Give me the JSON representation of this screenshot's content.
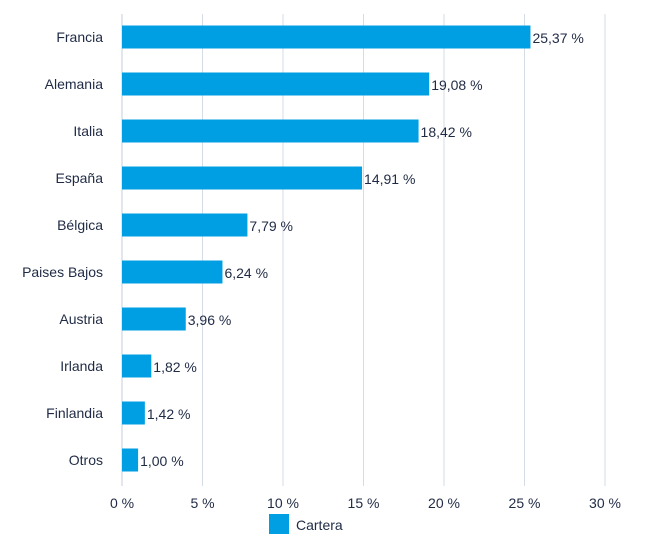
{
  "chart_data": {
    "type": "bar",
    "orientation": "horizontal",
    "categories": [
      "Francia",
      "Alemania",
      "Italia",
      "España",
      "Bélgica",
      "Paises Bajos",
      "Austria",
      "Irlanda",
      "Finlandia",
      "Otros"
    ],
    "series": [
      {
        "name": "Cartera",
        "values": [
          25.37,
          19.08,
          18.42,
          14.91,
          7.79,
          6.24,
          3.96,
          1.82,
          1.42,
          1.0
        ],
        "labels": [
          "25,37 %",
          "19,08 %",
          "18,42 %",
          "14,91 %",
          "7,79 %",
          "6,24 %",
          "3,96 %",
          "1,82 %",
          "1,42 %",
          "1,00 %"
        ]
      }
    ],
    "xlim": [
      0,
      30
    ],
    "xticks": [
      0,
      5,
      10,
      15,
      20,
      25,
      30
    ],
    "xtick_labels": [
      "0 %",
      "5 %",
      "10 %",
      "15 %",
      "20 %",
      "25 %",
      "30 %"
    ],
    "grid": true,
    "legend_position": "bottom",
    "colors": {
      "bar": "#009fe3",
      "grid": "#d6dce6",
      "text": "#1f2a44"
    }
  }
}
